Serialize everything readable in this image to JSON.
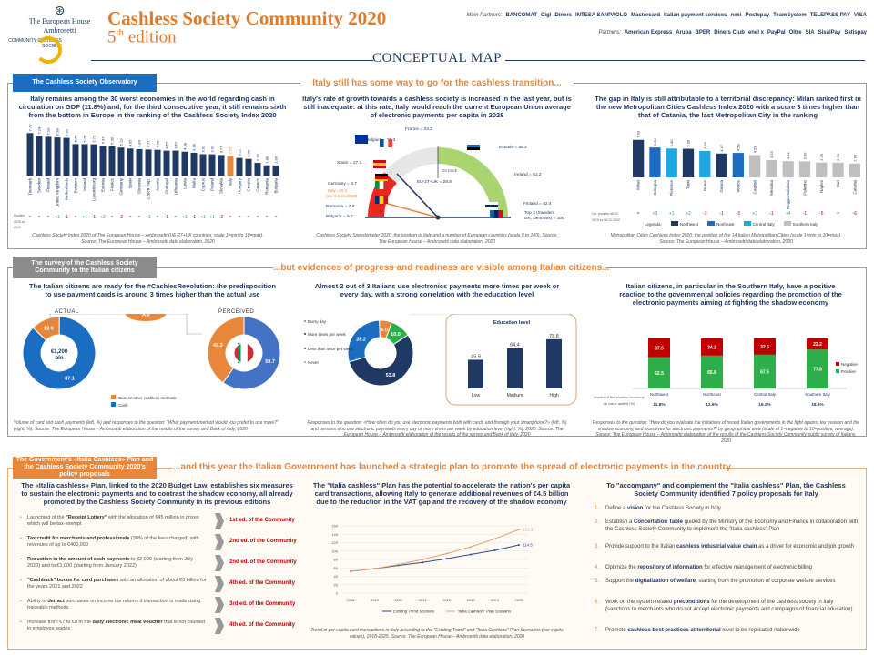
{
  "header": {
    "org_name": "The European House Ambrosetti",
    "community_logo_text": "COMMUNITY CASHLESS SOCIETY",
    "title": "Cashless Society Community 2020",
    "edition_num": "5",
    "edition_sup": "th",
    "edition_word": "edition",
    "main_partners_label": "Main Partners:",
    "main_partners": [
      "BANCOMAT",
      "Cigl",
      "Diners",
      "INTESA SANPAOLO",
      "Mastercard",
      "Italian payment services",
      "nexi",
      "Postepay",
      "TeamSystem",
      "TELEPASS PAY",
      "VISA"
    ],
    "partners_label": "Partners:",
    "partners": [
      "American Express",
      "Aruba",
      "BPER",
      "Diners Club",
      "enel x",
      "PayPal",
      "Oltre",
      "SIA",
      "SisalPay",
      "Satispay"
    ],
    "conceptual_map": "CONCEPTUAL MAP"
  },
  "colors": {
    "navy": "#1f3864",
    "dark_blue": "#1b3f8b",
    "orange": "#e8863a",
    "green": "#2eae4a",
    "red": "#c00000",
    "gray": "#bfbfbf",
    "light_blue": "#1ea7e1",
    "mid_blue": "#1b6dc1"
  },
  "section1": {
    "tab": "The Cashless Society Observatory",
    "headline": "Italy still has some way to go for the cashless transition...",
    "left": {
      "subtitle": "Italy remains among the 30 worst economies in the world regarding cash in circulation on GDP (11.8%) and, for the third consecutive year, it still remains sixth from the bottom in Europe in the ranking of the Cashless Society Index 2020",
      "change_label": "Position 2019 vs 2020",
      "caption": "Cashless Society Index 2020 of The European House – Ambrosetti (UE-27+UK countries; scale 1=min to 10=max). Source: The European House – Ambrosetti data elaboration, 2020"
    },
    "middle": {
      "subtitle": "Italy's rate of growth towards a cashless society is increased in the last year, but is still inadequate: at this rate, Italy would reach the current European Union average of electronic payments per capita in 2028",
      "labels": {
        "france": "France = 33.2",
        "belgium": "Belgium = 29.3",
        "estonia": "Estonia = 55.2",
        "spain": "Spain = 17.7",
        "ireland": "Ireland = 61.2",
        "germany": "Germany = 8.7",
        "italy": "Italy = 8.3",
        "italy_prev": "(vs. 6.6 in 2019)",
        "romania": "Romania = 7.8",
        "bulgaria": "Bulgaria = 5.7",
        "finland": "Finland = 92.4",
        "top3": "Top 3 (Sweden, UK, Denmark) = 100",
        "eu": "EU-27+UK = 28.8",
        "on_track": "On track"
      },
      "caption": "Cashless Society Speedometer 2020: the position of Italy and a number of European countries (scale 0 to 100). Source: The European House – Ambrosetti data elaboration, 2020"
    },
    "right": {
      "subtitle": "The gap in Italy is still attributable to a territorial discrepancy: Milan ranked first in the new Metropolitan Cities Cashless Index 2020 with a score 3 times higher than that of Catania, the last Metropolitan City in the ranking",
      "change_label": "Var. position MCCI 2019 vs MCCI 2020",
      "legend_label": "Legenda:",
      "legend": [
        "Northwest",
        "Northeast",
        "Central Italy",
        "Southern Italy"
      ],
      "caption": "Metropolitan Cities Cashless Index 2020: the position of the 14 Italian Metropolitan Cities (scale 1=min to 10=max). Source: The European House – Ambrosetti data elaboration, 2020"
    }
  },
  "section2": {
    "tab": "The survey of the Cashless Society Community to the Italian citizens",
    "headline": "...but evidences of progress and readiness are visible among Italian citizens...",
    "left": {
      "subtitle": "The Italian citizens are ready for the #CashlesRevolution: the predisposition to use payment cards is around 3 times higher than the actual use",
      "actual_label": "ACTUAL",
      "perceived_label": "PERCEIVED",
      "multiplier": "X3",
      "center": "€1,200 bln",
      "legend": [
        "Card or other cashless methods",
        "Cash"
      ],
      "caption": "Volume of card and cash payments (left, %) and responses to the question: \"What payment method would you prefer to use more?\" (right, %). Source: The European House – Ambrosetti elaboration of the results of the survey and Bank of Italy, 2020"
    },
    "middle": {
      "subtitle": "Almost 2 out of 3 Italians use electronics payments more times per week or every day, with a strong correlation with the education level",
      "legend": [
        "Every day",
        "More times per week",
        "Less than once per week",
        "Never"
      ],
      "edu_title": "Education level",
      "caption": "Responses to the question: «How often do you use electronic payments both with cards and through your smartphone?» (left, %) and persons who use electronic payments every day or more times per week by education level (right, %), 2020. Source: The European House – Ambrosetti elaboration of the results of the survey and Bank of Italy, 2020"
    },
    "right": {
      "subtitle": "Italian citizens, in particular in the Southern Italy, have a positive reaction to the governmental policies regarding the promotion of the electronic payments aiming at fighting the shadow economy",
      "legend": [
        "Negative",
        "Positive"
      ],
      "impact_label": "Impact of the shadow economy on value added (%)",
      "caption": "Responses to the question: \"How do you evaluate the initiatives of recent Italian governments in the fight against tax evasion and the shadow economy, and incentives for electronic payments?\" by geographical area (scale of 1=negative to 10=positive, average). Source: The European House – Ambrosetti elaboration of the results of the Cashless Society Community public survey of Italians, 2020"
    }
  },
  "section3": {
    "tab": "The Government's «Italia Cashless» Plan and the Cashless Society Community 2020's policy proposals",
    "headline": "...and this year the Italian Government has launched a strategic plan to promote the spread of electronic payments in the country",
    "left": {
      "subtitle": "The «Italia cashless» Plan, linked to the 2020 Budget Law, establishes six measures to sustain the electronic payments and to contrast the shadow economy, all already promoted by the Cashless Society Community in its previous editions",
      "measures": [
        {
          "pre": "Launching of the ",
          "bold": "\"Receipt Lottery\"",
          "post": " with the allocation of €45 million in prizes which will be tax-exempt",
          "edition": "1st ed. of the Community"
        },
        {
          "pre": "",
          "bold": "Tax credit for merchants and professionals",
          "post": " (30% of the fees charged) with revenues of up to €400,000",
          "edition": "2nd ed. of the Community"
        },
        {
          "pre": "",
          "bold": "Reduction in the amount of cash payments",
          "post": " to €2,000 (starting from July 2020) and to €1,000 (starting from January 2022)",
          "edition": "2nd ed. of the Community"
        },
        {
          "pre": "",
          "bold": "\"Cashback\" bonus for card purchases",
          "post": " with an allocation of about €3 billion for the years 2021 and 2022",
          "edition": "4th ed. of the Community"
        },
        {
          "pre": "Ability to ",
          "bold": "detract",
          "post": " purchases on income tax returns if transaction is made using traceable methods",
          "edition": "3rd ed. of the Community"
        },
        {
          "pre": "Increase from €7 to €8 in the ",
          "bold": "daily electronic meal voucher",
          "post": " that is not counted in employee wages",
          "edition": "4th ed. of the Community"
        }
      ]
    },
    "middle": {
      "subtitle": "The \"Italia cashless\" Plan has the potential to accelerate the nation's per capita card transactions, allowing Italy to generate additional revenues of €4.5 billion due to the reduction in the VAT gap and the recovery of the shadow economy",
      "caption": "Trend in per capita card transactions in Italy according to the \"Existing Trend\" and \"Italia Cashless\" Plan Scenarios (per capita values), 2018-2025. Source: The European House – Ambrosetti data elaboration, 2020"
    },
    "right": {
      "subtitle": "To \"accompany\" and complement the \"Italia cashless\" Plan, the Cashless Society Community identified 7 policy proposals for Italy",
      "proposals": [
        {
          "pre": "Define a ",
          "bold": "vision",
          "post": " for the Cashless Society in Italy"
        },
        {
          "pre": "Establish a ",
          "bold": "Concertation Table",
          "post": " guided by the Ministry of the Economy and Finance in collaboration with the Cashless Society Community to implement the \"Italia cashless\" Plan"
        },
        {
          "pre": "Provide support to the Italian ",
          "bold": "cashless industrial value chain",
          "post": " as a driver for economic and job growth"
        },
        {
          "pre": "Optimize the ",
          "bold": "repository of information",
          "post": " for effective management of electronic billing"
        },
        {
          "pre": "Support the ",
          "bold": "digitalization of welfare",
          "post": ", starting from the promotion of corporate welfare services"
        },
        {
          "pre": "Work on the system-related ",
          "bold": "preconditions",
          "post": " for the development of the cashless society in Italy (sanctions to merchants who do not accept electronic payments and campaigns of financial education)"
        },
        {
          "pre": "Promote ",
          "bold": "cashless best practices at territorial",
          "post": " level to be replicated nationwide"
        }
      ]
    }
  },
  "chart_data": [
    {
      "type": "bar",
      "id": "csi",
      "categories": [
        "Denmark",
        "Sweden",
        "Finland",
        "United Kingdom",
        "Netherlands",
        "Belgium",
        "Ireland",
        "Luxembourg",
        "Estonia",
        "France",
        "Germany",
        "Spain",
        "Slovenia",
        "Czech Rep.",
        "Austria",
        "Portugal",
        "Lithuania",
        "Latvia",
        "Malta",
        "Cyprus",
        "Poland",
        "Slovakia",
        "Italy",
        "Hungary",
        "Croatia",
        "Greece",
        "Romania",
        "Bulgaria"
      ],
      "values": [
        7.78,
        7.24,
        7.1,
        6.98,
        6.9,
        5.77,
        5.76,
        5.73,
        5.47,
        5.36,
        5.13,
        4.95,
        4.84,
        4.77,
        4.72,
        4.57,
        4.57,
        4.38,
        4.18,
        3.92,
        3.9,
        3.77,
        3.56,
        3.22,
        3.05,
        2.33,
        1.88,
        1.86
      ],
      "changes": [
        "=",
        "=",
        "=",
        "+1",
        "-1",
        "=",
        "+1",
        "-1",
        "+2",
        "=",
        "-2",
        "=",
        "=",
        "+1",
        "=",
        "-1",
        "=",
        "+1",
        "-1",
        "+1",
        "+1",
        "-2",
        "=",
        "=",
        "=",
        "=",
        "=",
        "="
      ],
      "highlight": "Italy"
    },
    {
      "type": "gauge",
      "id": "speedometer",
      "range": [
        0,
        100
      ],
      "points": [
        {
          "name": "Bulgaria",
          "value": 5.7
        },
        {
          "name": "Romania",
          "value": 7.8
        },
        {
          "name": "Italy",
          "value": 8.3
        },
        {
          "name": "Germany",
          "value": 8.7
        },
        {
          "name": "Spain",
          "value": 17.7
        },
        {
          "name": "EU-27+UK",
          "value": 28.8
        },
        {
          "name": "Belgium",
          "value": 29.3
        },
        {
          "name": "France",
          "value": 33.2
        },
        {
          "name": "Estonia",
          "value": 55.2
        },
        {
          "name": "Ireland",
          "value": 61.2
        },
        {
          "name": "Finland",
          "value": 92.4
        },
        {
          "name": "Top 3",
          "value": 100
        }
      ]
    },
    {
      "type": "bar",
      "id": "mcci",
      "categories": [
        "Milan",
        "Bologna",
        "Florence",
        "Turin",
        "Rome",
        "Genoa",
        "Venice",
        "Cagliari",
        "Messina",
        "Reggio Calabria",
        "Palermo",
        "Naples",
        "Bari",
        "Catania"
      ],
      "values": [
        7.03,
        5.6,
        5.4,
        5.36,
        4.96,
        4.47,
        4.59,
        4.19,
        3.23,
        3.04,
        3.0,
        2.79,
        2.76,
        2.6
      ],
      "areas": [
        "Northwest",
        "Northeast",
        "Central Italy",
        "Northwest",
        "Central Italy",
        "Northwest",
        "Northeast",
        "Southern Italy",
        "Southern Italy",
        "Southern Italy",
        "Southern Italy",
        "Southern Italy",
        "Southern Italy",
        "Southern Italy"
      ],
      "changes": [
        "=",
        "+3",
        "+1",
        "+2",
        "-3",
        "-1",
        "-3",
        "+3",
        "-1",
        "+4",
        "-1",
        "-5",
        "=",
        "-6"
      ]
    },
    {
      "type": "pie",
      "id": "actual",
      "series": [
        {
          "name": "Card or other cashless methods",
          "value": 12.9
        },
        {
          "name": "Cash",
          "value": 87.1
        }
      ]
    },
    {
      "type": "pie",
      "id": "perceived",
      "series": [
        {
          "name": "Card or other cashless methods",
          "value": 40.3
        },
        {
          "name": "Cash",
          "value": 59.7
        }
      ]
    },
    {
      "type": "pie",
      "id": "frequency",
      "series": [
        {
          "name": "Every day",
          "value": 10.0
        },
        {
          "name": "More times per week",
          "value": 53.8
        },
        {
          "name": "Less than once per week",
          "value": 28.2
        },
        {
          "name": "Never",
          "value": 6.0
        }
      ]
    },
    {
      "type": "bar",
      "id": "education",
      "title": "Education level",
      "categories": [
        "Low",
        "Medium",
        "High"
      ],
      "values": [
        45.9,
        64.4,
        78.8
      ]
    },
    {
      "type": "bar",
      "id": "policy",
      "stacked": true,
      "categories": [
        "Northwest",
        "Northeast",
        "Central Italy",
        "Southern Italy"
      ],
      "series": [
        {
          "name": "Positive",
          "values": [
            62.5,
            65.8,
            67.5,
            77.8
          ]
        },
        {
          "name": "Negative",
          "values": [
            37.5,
            34.2,
            32.5,
            22.2
          ]
        }
      ],
      "impact": [
        "11.8%",
        "12.6%",
        "16.2%",
        "18.3%"
      ]
    },
    {
      "type": "line",
      "id": "trend",
      "x": [
        "2018",
        "2019",
        "2020",
        "2021",
        "2022",
        "2023",
        "2024",
        "2025"
      ],
      "ylim": [
        0,
        160
      ],
      "yticks": [
        0,
        20,
        40,
        60,
        80,
        100,
        120,
        140,
        160
      ],
      "grid": true,
      "legend": "bottom",
      "series": [
        {
          "name": "Existing Trend Scenario",
          "values": [
            52,
            58,
            66,
            73,
            82,
            92,
            102,
            114.5
          ],
          "color": "#2e4a8c"
        },
        {
          "name": "\"Italia Cashless\" Plan Scenario",
          "values": [
            52,
            58,
            68,
            80,
            94,
            110,
            129,
            151.3
          ],
          "color": "#e8a070"
        }
      ],
      "end_labels": [
        "114.5",
        "151.3"
      ]
    }
  ]
}
